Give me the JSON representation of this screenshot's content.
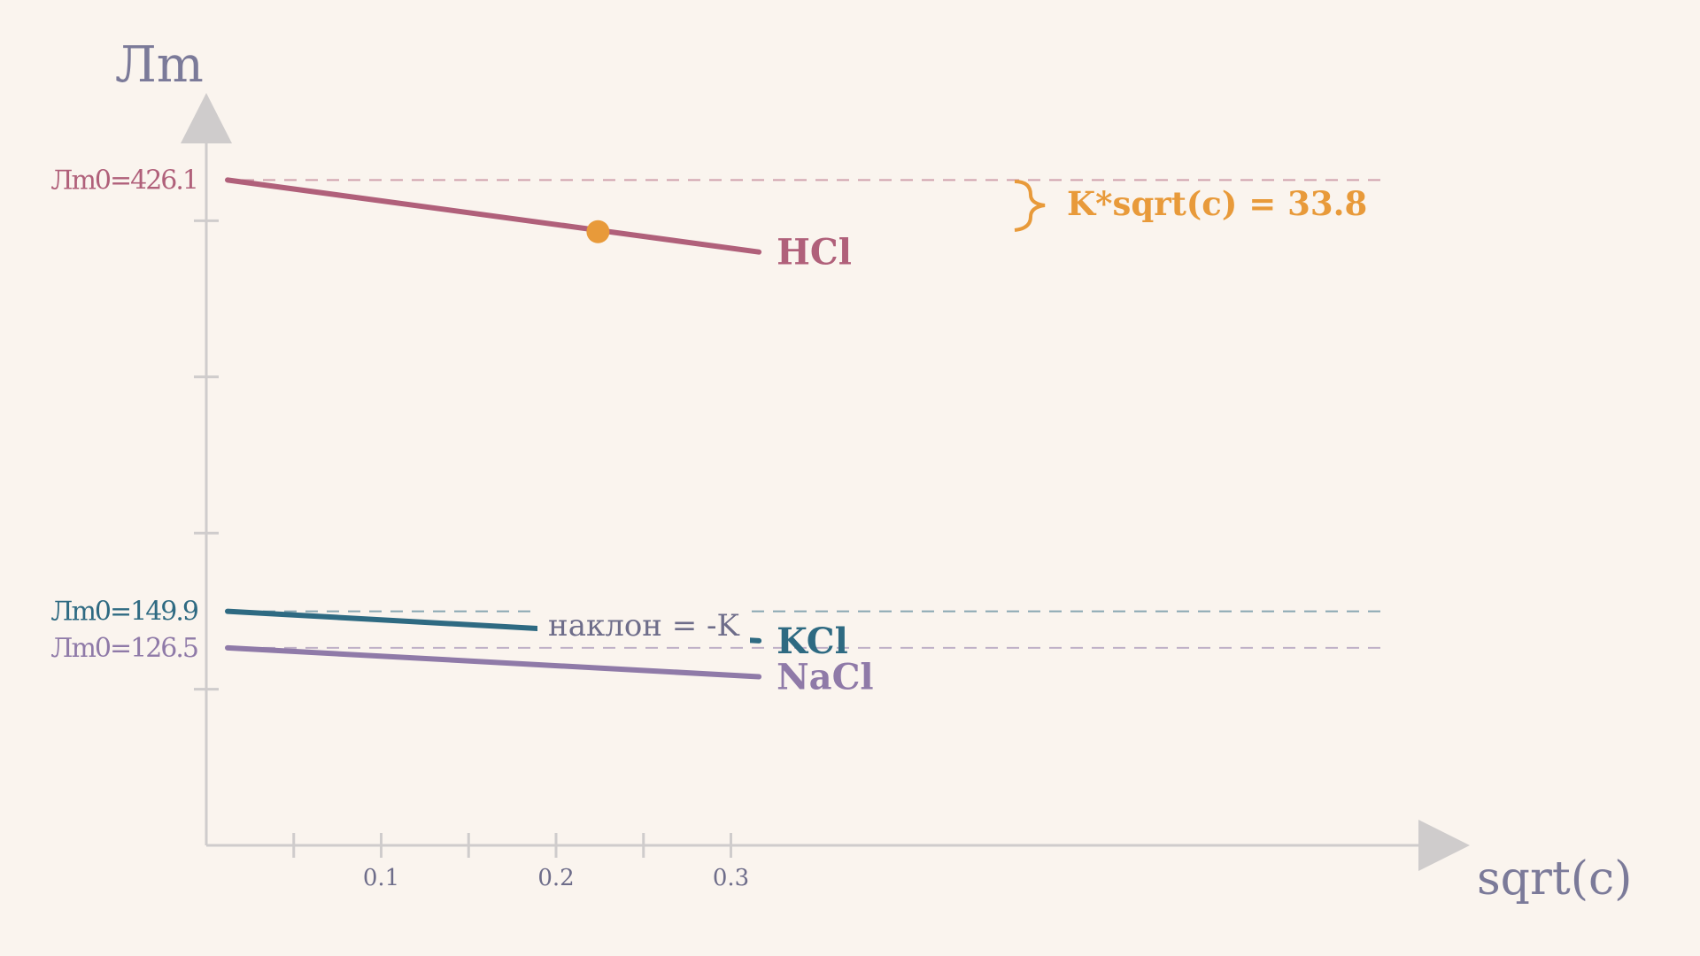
{
  "chart_data": {
    "type": "line",
    "xlabel": "sqrt(c)",
    "ylabel": "Лm",
    "xlim": [
      0,
      0.35
    ],
    "ylim": [
      0,
      500
    ],
    "xticks": [
      0.05,
      0.1,
      0.15,
      0.2,
      0.25,
      0.3
    ],
    "xtick_labels": [
      "0.1",
      "0.2",
      "0.3"
    ],
    "xtick_label_values": [
      0.1,
      0.2,
      0.3
    ],
    "yticks": [
      100,
      200,
      300,
      400
    ],
    "x_range": [
      0,
      0.316
    ],
    "series": [
      {
        "name": "HCl",
        "intercept": 426.1,
        "intercept_label": "Лm0=426.1",
        "color": "#b0607a",
        "y_end": 380
      },
      {
        "name": "KCl",
        "intercept": 149.9,
        "intercept_label": "Лm0=149.9",
        "color": "#2e6a82",
        "y_end": 131
      },
      {
        "name": "NaCl",
        "intercept": 126.5,
        "intercept_label": "Лm0=126.5",
        "color": "#8f7aa8",
        "y_end": 108
      }
    ],
    "annotations": {
      "marker": {
        "series": "HCl",
        "x": 0.224,
        "y": 393
      },
      "k_label": "K*sqrt(c) = 33.8",
      "slope_label": "наклон = -K"
    },
    "colors": {
      "axis": "#cfcccc",
      "annotation": "#e89a3a",
      "axis_text": "#7b7a99"
    }
  }
}
